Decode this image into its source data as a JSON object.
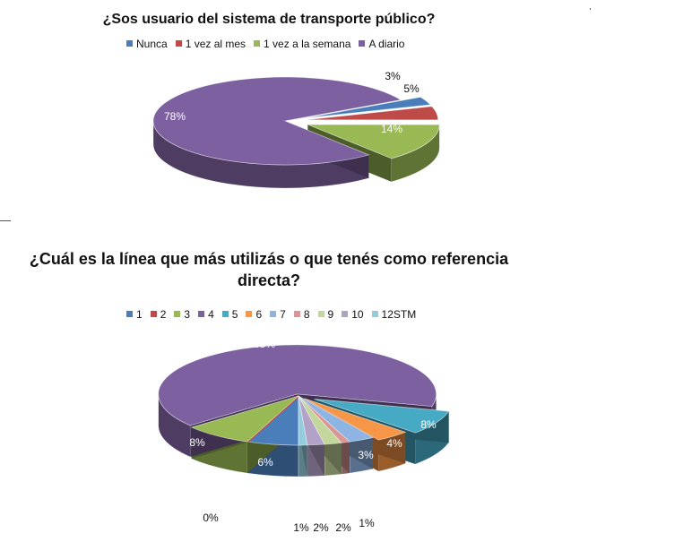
{
  "chart_data": [
    {
      "type": "pie",
      "title": "¿Sos usuario del sistema de transporte público?",
      "categories": [
        "Nunca",
        "1 vez al mes",
        "1 vez a la semana",
        "A diario"
      ],
      "values": [
        3,
        5,
        14,
        78
      ],
      "labels": [
        "3%",
        "5%",
        "14%",
        "78%"
      ],
      "colors": [
        "#4a7ebb",
        "#be4b48",
        "#98b954",
        "#7d60a0"
      ],
      "legend": "top"
    },
    {
      "type": "pie",
      "title": "¿Cuál es la línea que más utilizás o que tenés como referencia directa?",
      "categories": [
        "1",
        "2",
        "3",
        "4",
        "5",
        "6",
        "7",
        "8",
        "9",
        "10",
        "12STM"
      ],
      "values": [
        6,
        0,
        8,
        65,
        8,
        4,
        3,
        1,
        2,
        2,
        1
      ],
      "labels": [
        "6%",
        "0%",
        "8%",
        "65%",
        "8%",
        "4%",
        "3%",
        "1%",
        "2%",
        "2%",
        "1%"
      ],
      "colors": [
        "#4a7ebb",
        "#be4b48",
        "#98b954",
        "#7d60a0",
        "#46aac5",
        "#f79646",
        "#8eb4e3",
        "#d99694",
        "#c3d69b",
        "#b3a2c7",
        "#93cddd"
      ],
      "legend": "top"
    }
  ]
}
